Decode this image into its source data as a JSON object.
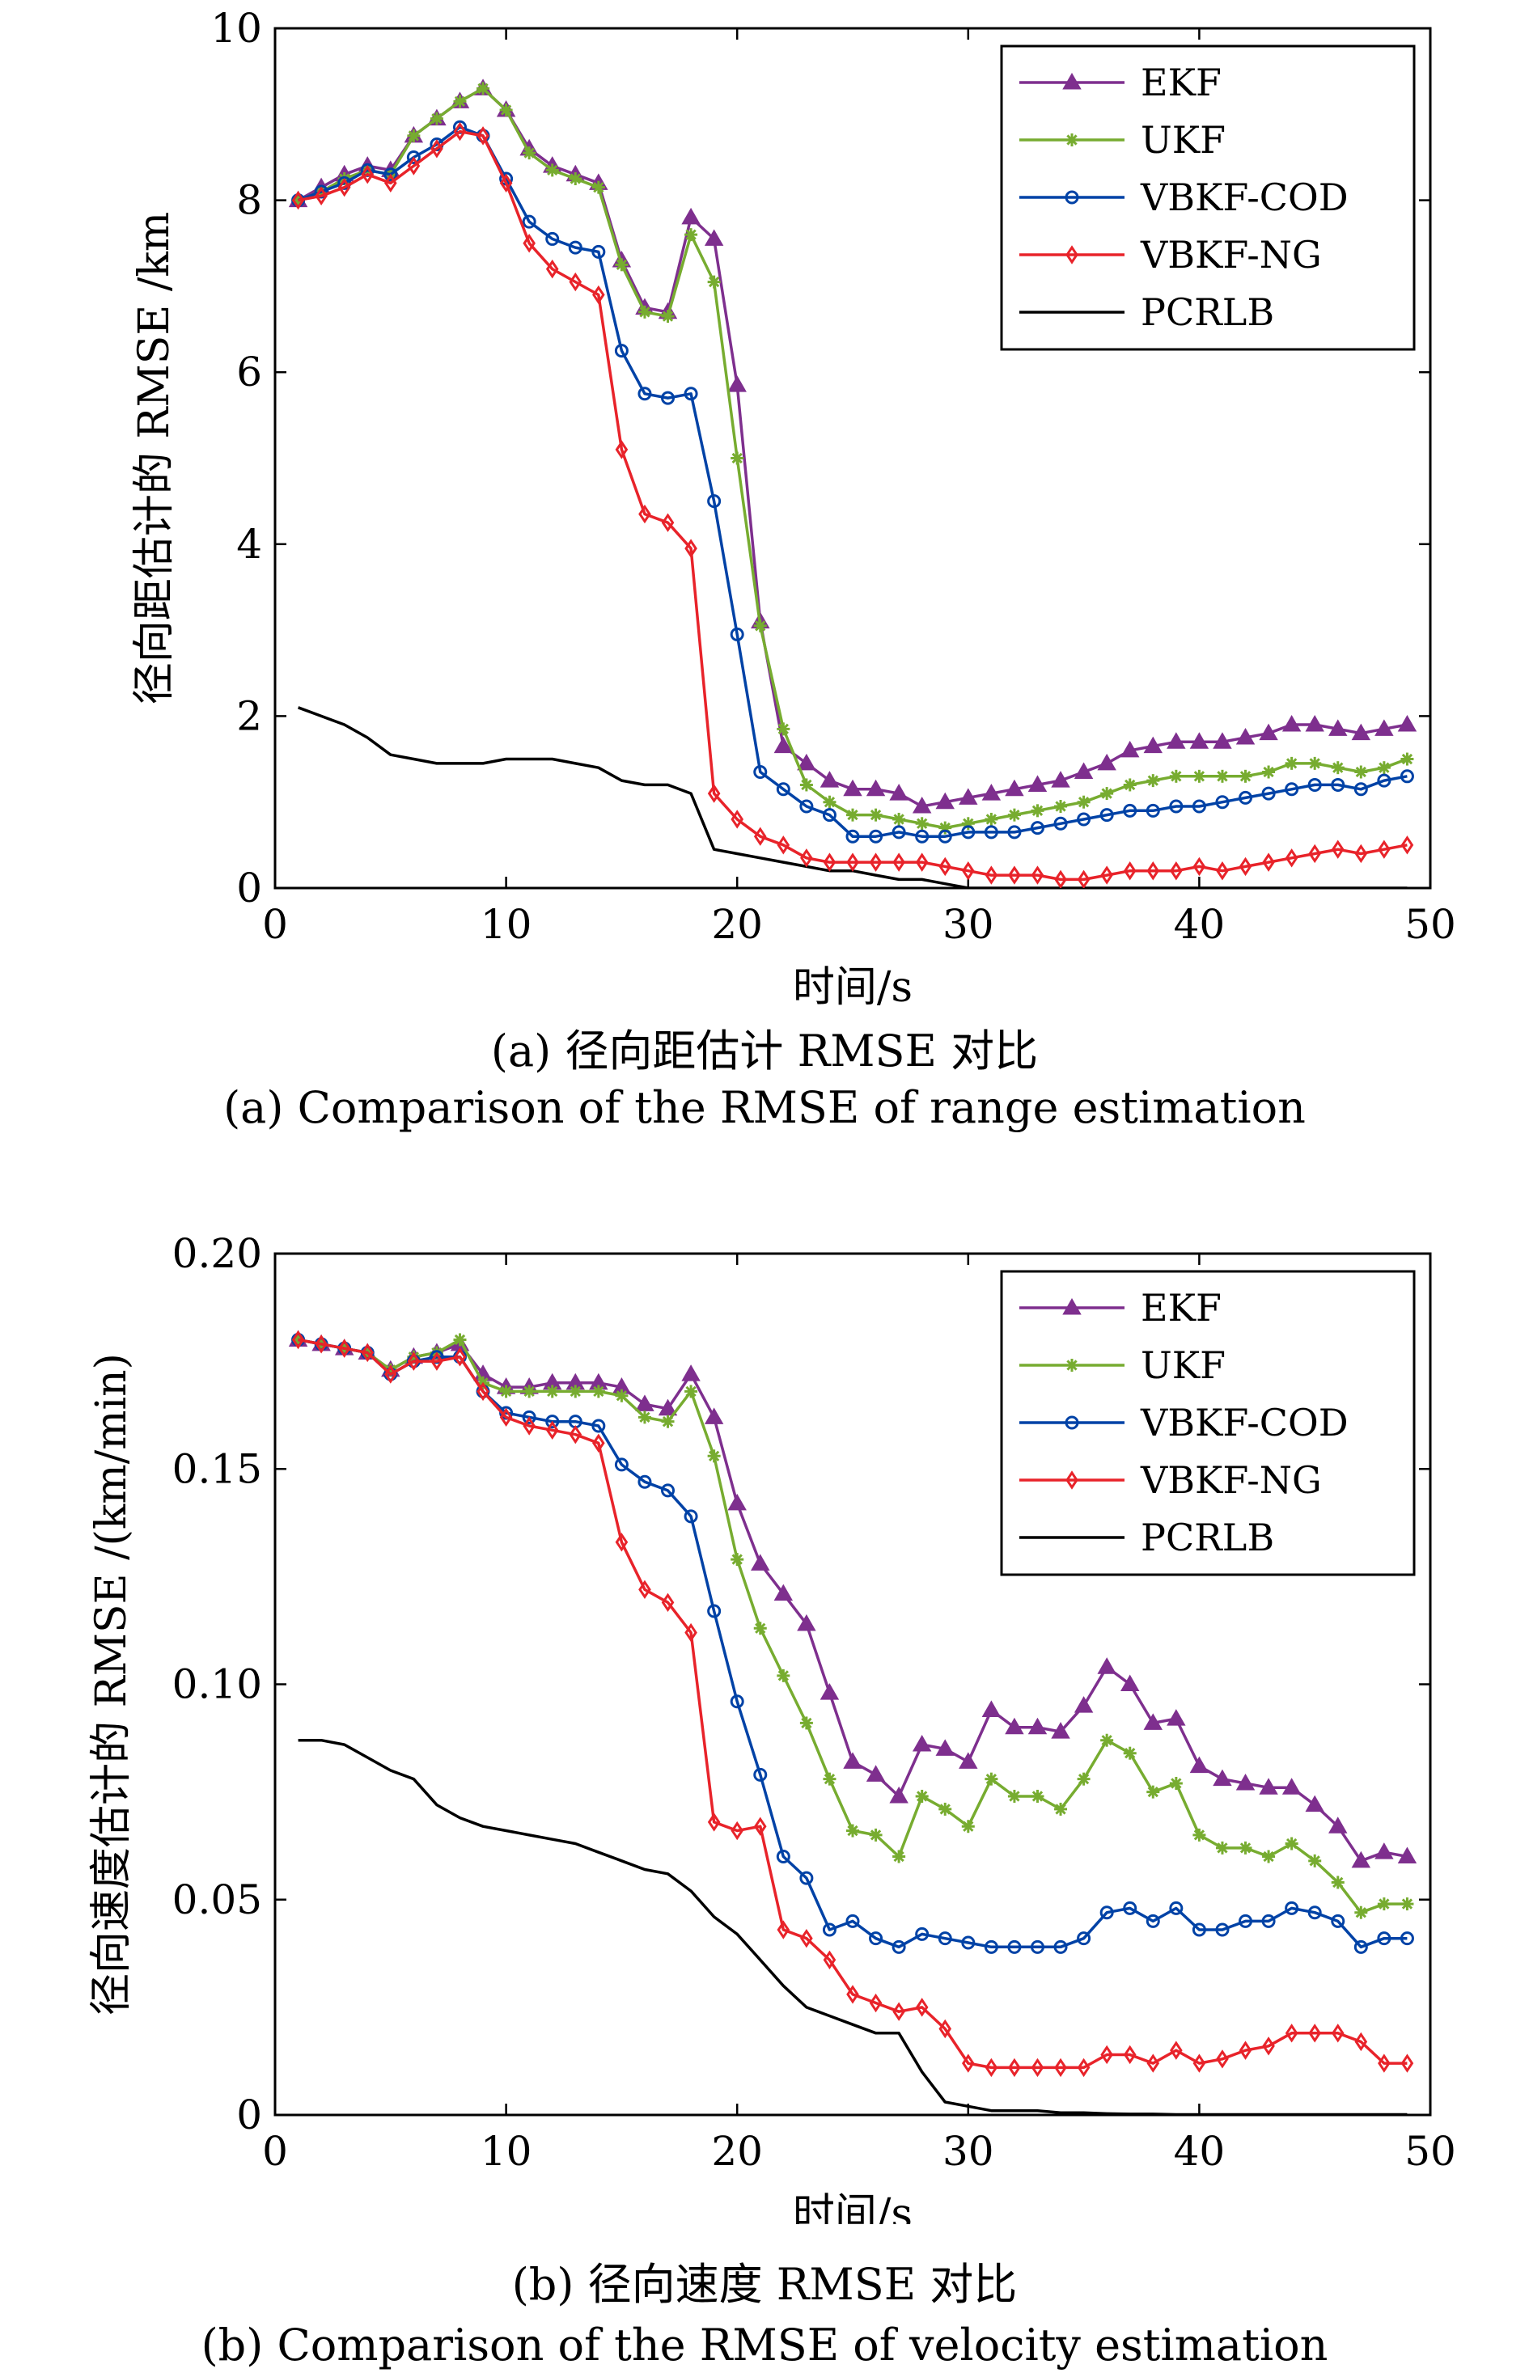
{
  "chart_data": [
    {
      "type": "line",
      "xlabel": "时间/s",
      "ylabel": "径向距估计的 RMSE /km",
      "xlim": [
        0,
        50
      ],
      "ylim": [
        0,
        10
      ],
      "xticks": [
        "0",
        "10",
        "20",
        "30",
        "40",
        "50"
      ],
      "yticks": [
        "0",
        "2",
        "4",
        "6",
        "8",
        "10"
      ],
      "grid": false,
      "legend_position": "top-right",
      "caption_cn": "(a) 径向距估计 RMSE 对比",
      "caption_en": "(a) Comparison of the RMSE of range estimation",
      "series": [
        {
          "name": "EKF",
          "color": "#7e2f8e",
          "marker": "triangle",
          "x": [
            1,
            2,
            3,
            4,
            5,
            6,
            7,
            8,
            9,
            10,
            11,
            12,
            13,
            14,
            15,
            16,
            17,
            18,
            19,
            20,
            21,
            22,
            23,
            24,
            25,
            26,
            27,
            28,
            29,
            30,
            31,
            32,
            33,
            34,
            35,
            36,
            37,
            38,
            39,
            40,
            41,
            42,
            43,
            44,
            45,
            46,
            47,
            48,
            49
          ],
          "values": [
            8.0,
            8.15,
            8.3,
            8.4,
            8.35,
            8.75,
            8.95,
            9.15,
            9.3,
            9.05,
            8.6,
            8.4,
            8.3,
            8.2,
            7.3,
            6.75,
            6.7,
            7.8,
            7.55,
            5.85,
            3.1,
            1.65,
            1.45,
            1.25,
            1.15,
            1.15,
            1.1,
            0.95,
            1.0,
            1.05,
            1.1,
            1.15,
            1.2,
            1.25,
            1.35,
            1.45,
            1.6,
            1.65,
            1.7,
            1.7,
            1.7,
            1.75,
            1.8,
            1.9,
            1.9,
            1.85,
            1.8,
            1.85,
            1.9
          ]
        },
        {
          "name": "UKF",
          "color": "#77ac30",
          "marker": "asterisk",
          "x": [
            1,
            2,
            3,
            4,
            5,
            6,
            7,
            8,
            9,
            10,
            11,
            12,
            13,
            14,
            15,
            16,
            17,
            18,
            19,
            20,
            21,
            22,
            23,
            24,
            25,
            26,
            27,
            28,
            29,
            30,
            31,
            32,
            33,
            34,
            35,
            36,
            37,
            38,
            39,
            40,
            41,
            42,
            43,
            44,
            45,
            46,
            47,
            48,
            49
          ],
          "values": [
            8.0,
            8.1,
            8.25,
            8.35,
            8.3,
            8.75,
            8.95,
            9.15,
            9.3,
            9.05,
            8.55,
            8.35,
            8.25,
            8.15,
            7.25,
            6.7,
            6.65,
            7.6,
            7.05,
            5.0,
            3.05,
            1.85,
            1.2,
            1.0,
            0.85,
            0.85,
            0.8,
            0.75,
            0.7,
            0.75,
            0.8,
            0.85,
            0.9,
            0.95,
            1.0,
            1.1,
            1.2,
            1.25,
            1.3,
            1.3,
            1.3,
            1.3,
            1.35,
            1.45,
            1.45,
            1.4,
            1.35,
            1.4,
            1.5
          ]
        },
        {
          "name": "VBKF-COD",
          "color": "#0042a6",
          "marker": "circle",
          "x": [
            1,
            2,
            3,
            4,
            5,
            6,
            7,
            8,
            9,
            10,
            11,
            12,
            13,
            14,
            15,
            16,
            17,
            18,
            19,
            20,
            21,
            22,
            23,
            24,
            25,
            26,
            27,
            28,
            29,
            30,
            31,
            32,
            33,
            34,
            35,
            36,
            37,
            38,
            39,
            40,
            41,
            42,
            43,
            44,
            45,
            46,
            47,
            48,
            49
          ],
          "values": [
            8.0,
            8.1,
            8.2,
            8.35,
            8.3,
            8.5,
            8.65,
            8.85,
            8.75,
            8.25,
            7.75,
            7.55,
            7.45,
            7.4,
            6.25,
            5.75,
            5.7,
            5.75,
            4.5,
            2.95,
            1.35,
            1.15,
            0.95,
            0.85,
            0.6,
            0.6,
            0.65,
            0.6,
            0.6,
            0.65,
            0.65,
            0.65,
            0.7,
            0.75,
            0.8,
            0.85,
            0.9,
            0.9,
            0.95,
            0.95,
            1.0,
            1.05,
            1.1,
            1.15,
            1.2,
            1.2,
            1.15,
            1.25,
            1.3
          ]
        },
        {
          "name": "VBKF-NG",
          "color": "#e8232a",
          "marker": "diamond",
          "x": [
            1,
            2,
            3,
            4,
            5,
            6,
            7,
            8,
            9,
            10,
            11,
            12,
            13,
            14,
            15,
            16,
            17,
            18,
            19,
            20,
            21,
            22,
            23,
            24,
            25,
            26,
            27,
            28,
            29,
            30,
            31,
            32,
            33,
            34,
            35,
            36,
            37,
            38,
            39,
            40,
            41,
            42,
            43,
            44,
            45,
            46,
            47,
            48,
            49
          ],
          "values": [
            8.0,
            8.05,
            8.15,
            8.3,
            8.2,
            8.4,
            8.6,
            8.8,
            8.75,
            8.2,
            7.5,
            7.2,
            7.05,
            6.9,
            5.1,
            4.35,
            4.25,
            3.95,
            1.1,
            0.8,
            0.6,
            0.5,
            0.35,
            0.3,
            0.3,
            0.3,
            0.3,
            0.3,
            0.25,
            0.2,
            0.15,
            0.15,
            0.15,
            0.1,
            0.1,
            0.15,
            0.2,
            0.2,
            0.2,
            0.25,
            0.2,
            0.25,
            0.3,
            0.35,
            0.4,
            0.45,
            0.4,
            0.45,
            0.5
          ]
        },
        {
          "name": "PCRLB",
          "color": "#000000",
          "marker": "none",
          "x": [
            1,
            2,
            3,
            4,
            5,
            6,
            7,
            8,
            9,
            10,
            11,
            12,
            13,
            14,
            15,
            16,
            17,
            18,
            19,
            20,
            21,
            22,
            23,
            24,
            25,
            26,
            27,
            28,
            29,
            30,
            31,
            32,
            33,
            34,
            35,
            36,
            37,
            38,
            39,
            40,
            41,
            42,
            43,
            44,
            45,
            46,
            47,
            48,
            49
          ],
          "values": [
            2.1,
            2.0,
            1.9,
            1.75,
            1.55,
            1.5,
            1.45,
            1.45,
            1.45,
            1.5,
            1.5,
            1.5,
            1.45,
            1.4,
            1.25,
            1.2,
            1.2,
            1.1,
            0.45,
            0.4,
            0.35,
            0.3,
            0.25,
            0.2,
            0.2,
            0.15,
            0.1,
            0.1,
            0.05,
            0.0,
            0.0,
            0.0,
            0.0,
            0.0,
            0.0,
            0.0,
            0.0,
            0.0,
            0.0,
            0.0,
            0.0,
            0.0,
            0.0,
            0.0,
            0.0,
            0.0,
            0.0,
            0.0,
            0.0
          ]
        }
      ]
    },
    {
      "type": "line",
      "xlabel": "时间/s",
      "ylabel": "径向速度估计的 RMSE /(km/min)",
      "xlim": [
        0,
        50
      ],
      "ylim": [
        0,
        0.2
      ],
      "xticks": [
        "0",
        "10",
        "20",
        "30",
        "40",
        "50"
      ],
      "yticks": [
        "0",
        "0.05",
        "0.10",
        "0.15",
        "0.20"
      ],
      "grid": false,
      "legend_position": "top-right",
      "caption_cn": "(b) 径向速度 RMSE 对比",
      "caption_en": "(b) Comparison of the RMSE of velocity estimation",
      "series": [
        {
          "name": "EKF",
          "color": "#7e2f8e",
          "marker": "triangle",
          "x": [
            1,
            2,
            3,
            4,
            5,
            6,
            7,
            8,
            9,
            10,
            11,
            12,
            13,
            14,
            15,
            16,
            17,
            18,
            19,
            20,
            21,
            22,
            23,
            24,
            25,
            26,
            27,
            28,
            29,
            30,
            31,
            32,
            33,
            34,
            35,
            36,
            37,
            38,
            39,
            40,
            41,
            42,
            43,
            44,
            45,
            46,
            47,
            48,
            49
          ],
          "values": [
            0.18,
            0.179,
            0.178,
            0.177,
            0.173,
            0.176,
            0.177,
            0.179,
            0.172,
            0.169,
            0.169,
            0.17,
            0.17,
            0.17,
            0.169,
            0.165,
            0.164,
            0.172,
            0.162,
            0.142,
            0.128,
            0.121,
            0.114,
            0.098,
            0.082,
            0.079,
            0.074,
            0.086,
            0.085,
            0.082,
            0.094,
            0.09,
            0.09,
            0.089,
            0.095,
            0.104,
            0.1,
            0.091,
            0.092,
            0.081,
            0.078,
            0.077,
            0.076,
            0.076,
            0.072,
            0.067,
            0.059,
            0.061,
            0.06
          ]
        },
        {
          "name": "UKF",
          "color": "#77ac30",
          "marker": "asterisk",
          "x": [
            1,
            2,
            3,
            4,
            5,
            6,
            7,
            8,
            9,
            10,
            11,
            12,
            13,
            14,
            15,
            16,
            17,
            18,
            19,
            20,
            21,
            22,
            23,
            24,
            25,
            26,
            27,
            28,
            29,
            30,
            31,
            32,
            33,
            34,
            35,
            36,
            37,
            38,
            39,
            40,
            41,
            42,
            43,
            44,
            45,
            46,
            47,
            48,
            49
          ],
          "values": [
            0.18,
            0.179,
            0.178,
            0.177,
            0.173,
            0.176,
            0.177,
            0.18,
            0.17,
            0.168,
            0.168,
            0.168,
            0.168,
            0.168,
            0.167,
            0.162,
            0.161,
            0.168,
            0.153,
            0.129,
            0.113,
            0.102,
            0.091,
            0.078,
            0.066,
            0.065,
            0.06,
            0.074,
            0.071,
            0.067,
            0.078,
            0.074,
            0.074,
            0.071,
            0.078,
            0.087,
            0.084,
            0.075,
            0.077,
            0.065,
            0.062,
            0.062,
            0.06,
            0.063,
            0.059,
            0.054,
            0.047,
            0.049,
            0.049
          ]
        },
        {
          "name": "VBKF-COD",
          "color": "#0042a6",
          "marker": "circle",
          "x": [
            1,
            2,
            3,
            4,
            5,
            6,
            7,
            8,
            9,
            10,
            11,
            12,
            13,
            14,
            15,
            16,
            17,
            18,
            19,
            20,
            21,
            22,
            23,
            24,
            25,
            26,
            27,
            28,
            29,
            30,
            31,
            32,
            33,
            34,
            35,
            36,
            37,
            38,
            39,
            40,
            41,
            42,
            43,
            44,
            45,
            46,
            47,
            48,
            49
          ],
          "values": [
            0.18,
            0.179,
            0.178,
            0.177,
            0.172,
            0.175,
            0.176,
            0.176,
            0.168,
            0.163,
            0.162,
            0.161,
            0.161,
            0.16,
            0.151,
            0.147,
            0.145,
            0.139,
            0.117,
            0.096,
            0.079,
            0.06,
            0.055,
            0.043,
            0.045,
            0.041,
            0.039,
            0.042,
            0.041,
            0.04,
            0.039,
            0.039,
            0.039,
            0.039,
            0.041,
            0.047,
            0.048,
            0.045,
            0.048,
            0.043,
            0.043,
            0.045,
            0.045,
            0.048,
            0.047,
            0.045,
            0.039,
            0.041,
            0.041
          ]
        },
        {
          "name": "VBKF-NG",
          "color": "#e8232a",
          "marker": "diamond",
          "x": [
            1,
            2,
            3,
            4,
            5,
            6,
            7,
            8,
            9,
            10,
            11,
            12,
            13,
            14,
            15,
            16,
            17,
            18,
            19,
            20,
            21,
            22,
            23,
            24,
            25,
            26,
            27,
            28,
            29,
            30,
            31,
            32,
            33,
            34,
            35,
            36,
            37,
            38,
            39,
            40,
            41,
            42,
            43,
            44,
            45,
            46,
            47,
            48,
            49
          ],
          "values": [
            0.18,
            0.179,
            0.178,
            0.177,
            0.172,
            0.175,
            0.175,
            0.176,
            0.168,
            0.162,
            0.16,
            0.159,
            0.158,
            0.156,
            0.133,
            0.122,
            0.119,
            0.112,
            0.068,
            0.066,
            0.067,
            0.043,
            0.041,
            0.036,
            0.028,
            0.026,
            0.024,
            0.025,
            0.02,
            0.012,
            0.011,
            0.011,
            0.011,
            0.011,
            0.011,
            0.014,
            0.014,
            0.012,
            0.015,
            0.012,
            0.013,
            0.015,
            0.016,
            0.019,
            0.019,
            0.019,
            0.017,
            0.012,
            0.012
          ]
        },
        {
          "name": "PCRLB",
          "color": "#000000",
          "marker": "none",
          "x": [
            1,
            2,
            3,
            4,
            5,
            6,
            7,
            8,
            9,
            10,
            11,
            12,
            13,
            14,
            15,
            16,
            17,
            18,
            19,
            20,
            21,
            22,
            23,
            24,
            25,
            26,
            27,
            28,
            29,
            30,
            31,
            32,
            33,
            34,
            35,
            36,
            37,
            38,
            39,
            40,
            41,
            42,
            43,
            44,
            45,
            46,
            47,
            48,
            49
          ],
          "values": [
            0.087,
            0.087,
            0.086,
            0.083,
            0.08,
            0.078,
            0.072,
            0.069,
            0.067,
            0.066,
            0.065,
            0.064,
            0.063,
            0.061,
            0.059,
            0.057,
            0.056,
            0.052,
            0.046,
            0.042,
            0.036,
            0.03,
            0.025,
            0.023,
            0.021,
            0.019,
            0.019,
            0.01,
            0.003,
            0.002,
            0.001,
            0.001,
            0.001,
            0.0005,
            0.0005,
            0.0003,
            0.0002,
            0.0002,
            0.0001,
            0.0001,
            0.0001,
            0.0001,
            0.0001,
            0.0001,
            0.0001,
            0.0001,
            0.0001,
            0.0001,
            0.0001
          ]
        }
      ]
    }
  ]
}
